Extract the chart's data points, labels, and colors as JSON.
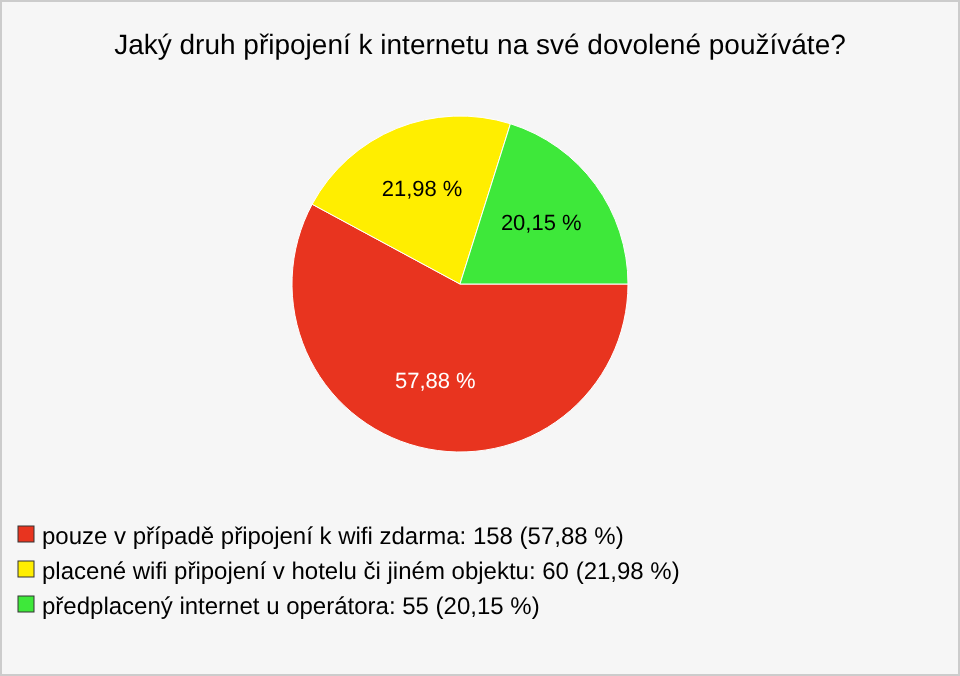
{
  "chart_data": {
    "type": "pie",
    "title": "Jaký druh připojení k internetu na své dovolené používáte?",
    "categories": [
      "pouze v případě připojení k wifi zdarma: 158 (57,88 %)",
      "placené wifi připojení v hotelu či jiném objektu: 60 (21,98 %)",
      "předplacený internet u operátora: 55 (20,15 %)"
    ],
    "values": [
      57.88,
      21.98,
      20.15
    ],
    "value_labels": [
      "57,88 %",
      "21,98 %",
      "20,15 %"
    ],
    "colors": [
      "#e8341f",
      "#ffee00",
      "#3ee83a"
    ],
    "legend": "bottom"
  }
}
